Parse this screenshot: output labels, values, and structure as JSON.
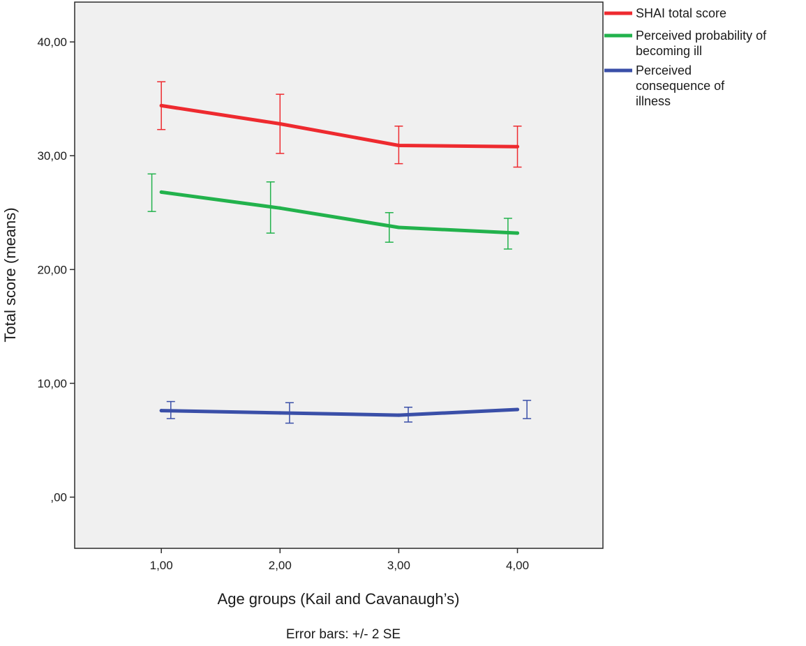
{
  "chart_data": {
    "type": "line",
    "title": "",
    "xlabel": "Age groups (Kail and Cavanaugh’s)",
    "ylabel": "Total score (means)",
    "footnote": "Error bars: +/- 2 SE",
    "x": [
      1,
      2,
      3,
      4
    ],
    "xtick_labels": [
      "1,00",
      "2,00",
      "3,00",
      "4,00"
    ],
    "xlim": [
      0.27,
      4.72
    ],
    "ylim": [
      -4.5,
      43.5
    ],
    "yticks": [
      0,
      10,
      20,
      30,
      40
    ],
    "ytick_labels": [
      ",00",
      "10,00",
      "20,00",
      "30,00",
      "40,00"
    ],
    "grid": false,
    "legend_position": "right",
    "series": [
      {
        "name": "SHAI total score",
        "color": "#ee2a2f",
        "values": [
          34.4,
          32.8,
          30.9,
          30.8
        ],
        "err_low": [
          32.3,
          30.2,
          29.3,
          29.0
        ],
        "err_high": [
          36.5,
          35.4,
          32.6,
          32.6
        ],
        "err_offset": 0.0
      },
      {
        "name": "Perceived probability of becoming ill",
        "color": "#22b24c",
        "values": [
          26.8,
          25.4,
          23.7,
          23.2
        ],
        "err_low": [
          25.1,
          23.2,
          22.4,
          21.8
        ],
        "err_high": [
          28.4,
          27.7,
          25.0,
          24.5
        ],
        "err_offset": -0.08
      },
      {
        "name": "Perceived consequence of illness",
        "color": "#3a4fa8",
        "values": [
          7.6,
          7.4,
          7.2,
          7.7
        ],
        "err_low": [
          6.9,
          6.5,
          6.6,
          6.9
        ],
        "err_high": [
          8.4,
          8.3,
          7.9,
          8.5
        ],
        "err_offset": 0.08
      }
    ]
  },
  "legend": {
    "items": [
      {
        "label_lines": [
          "SHAI total score"
        ]
      },
      {
        "label_lines": [
          "Perceived probability of",
          "becoming ill"
        ]
      },
      {
        "label_lines": [
          "Perceived",
          "consequence of",
          "illness"
        ]
      }
    ]
  }
}
